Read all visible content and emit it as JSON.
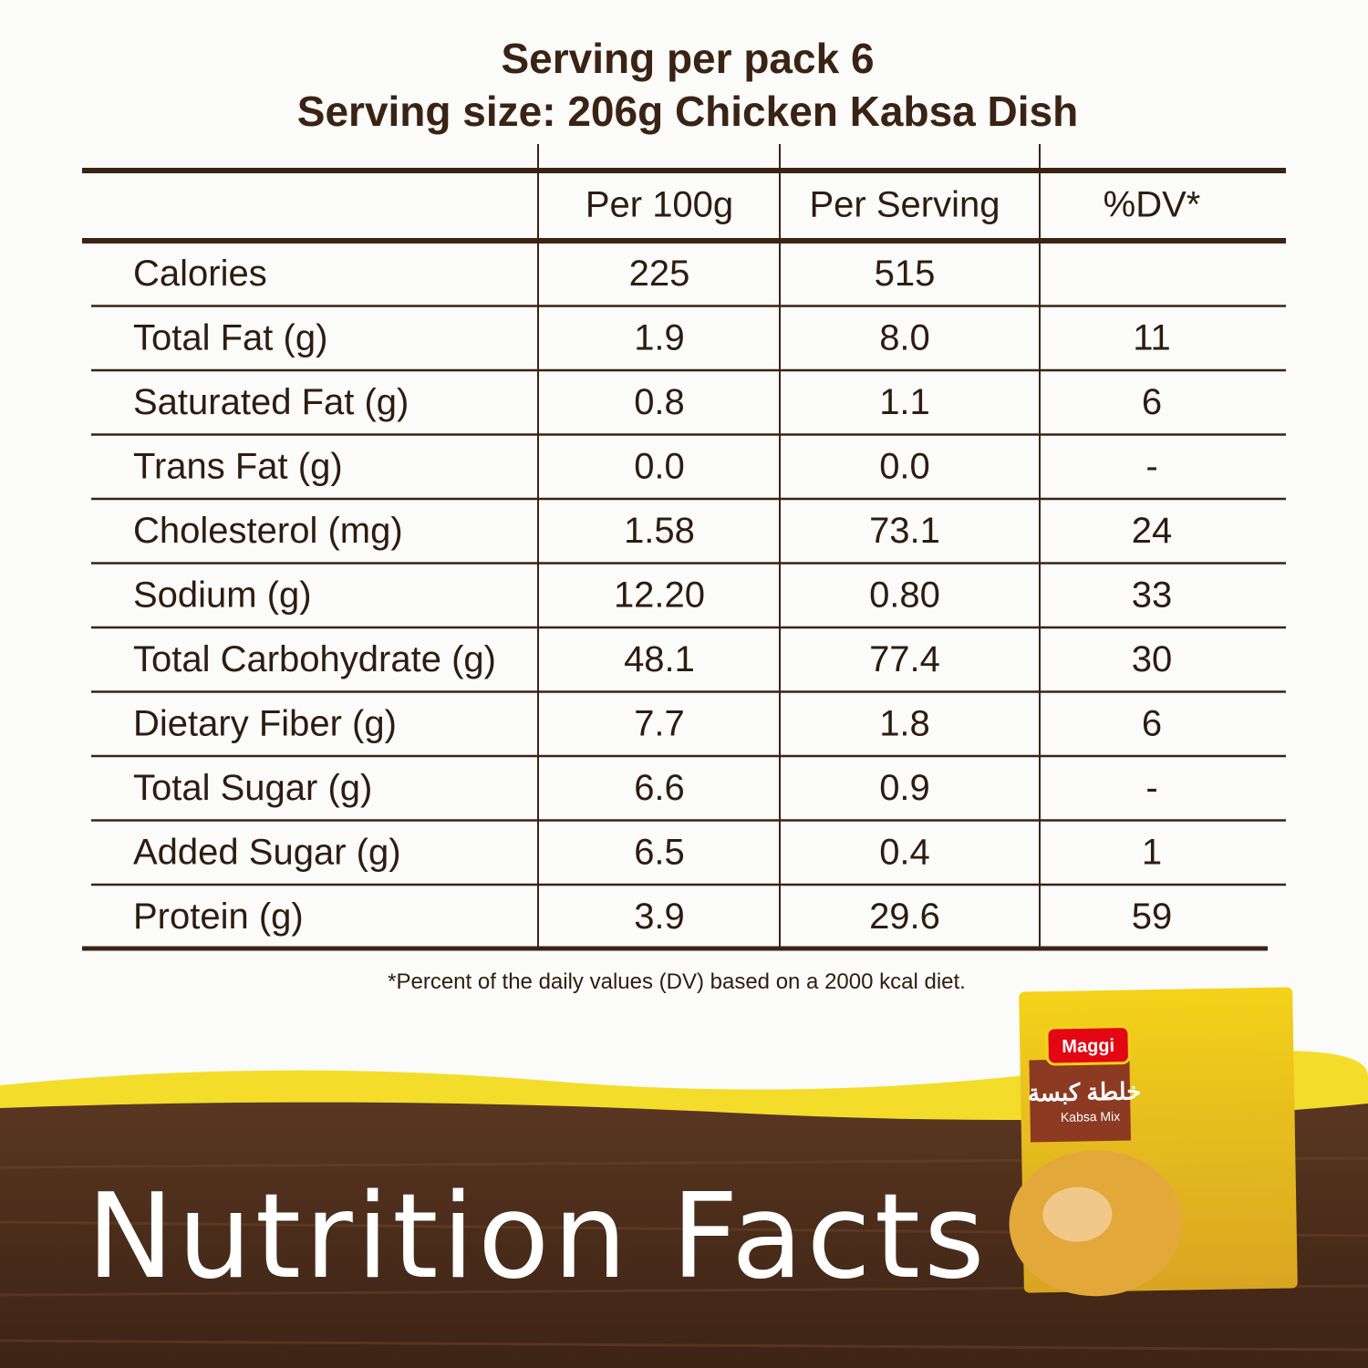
{
  "header": {
    "line1": "Serving per pack 6",
    "line2": "Serving size: 206g Chicken Kabsa Dish"
  },
  "table": {
    "columns": [
      "Per 100g",
      "Per Serving",
      "%DV*"
    ],
    "rows": [
      [
        "Calories",
        "225",
        "515",
        null
      ],
      [
        "Total Fat (g)",
        "1.9",
        "8.0",
        "11"
      ],
      [
        "Saturated Fat (g)",
        "0.8",
        "1.1",
        "6"
      ],
      [
        "Trans Fat (g)",
        "0.0",
        "0.0",
        "-"
      ],
      [
        "Cholesterol (mg)",
        "1.58",
        "73.1",
        "24"
      ],
      [
        "Sodium (g)",
        "12.20",
        "0.80",
        "33"
      ],
      [
        "Total Carbohydrate (g)",
        "48.1",
        "77.4",
        "30"
      ],
      [
        "Dietary Fiber (g)",
        "7.7",
        "1.8",
        "6"
      ],
      [
        "Total Sugar (g)",
        "6.6",
        "0.9",
        "-"
      ],
      [
        "Added Sugar (g)",
        "6.5",
        "0.4",
        "1"
      ],
      [
        "Protein (g)",
        "3.9",
        "29.6",
        "59"
      ]
    ]
  },
  "footnote": "*Percent of the daily values (DV) based on a 2000 kcal diet.",
  "banner": {
    "title": "Nutrition Facts"
  },
  "package": {
    "brand": "Maggi",
    "name_ar": "خلطة كبسة",
    "name": "Kabsa Mix"
  }
}
